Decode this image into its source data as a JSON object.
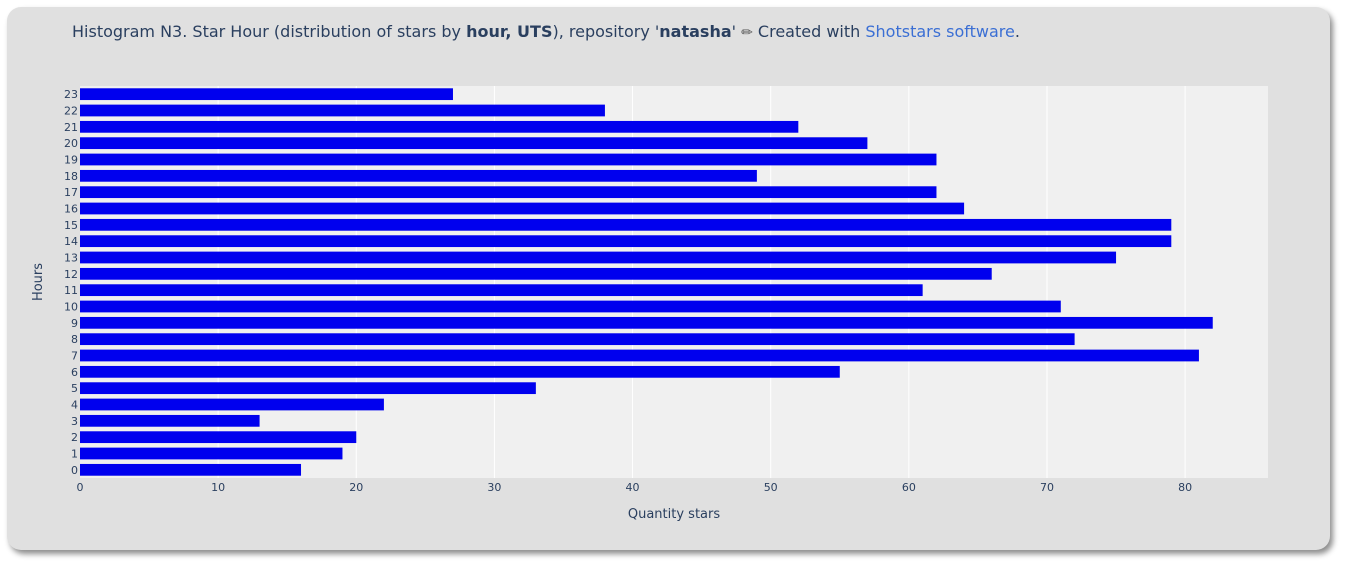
{
  "header": {
    "prefix": "Histogram N3. Star Hour (distribution of stars by ",
    "bold1": "hour, UTS",
    "mid": "), repository '",
    "bold2": "natasha",
    "after": "' ",
    "pen_icon": "pencil-icon",
    "created": " Created with ",
    "link_text": "Shotstars software",
    "end": "."
  },
  "colors": {
    "bar": "#0000ee",
    "plot_bg": "#f0f0f0",
    "card_bg": "#e0e0e0",
    "link": "#3b6fd4",
    "text": "#2a3f5f"
  },
  "chart_data": {
    "type": "bar",
    "orientation": "horizontal",
    "xlabel": "Quantity stars",
    "ylabel": "Hours",
    "xlim": [
      0,
      86
    ],
    "xticks": [
      0,
      10,
      20,
      30,
      40,
      50,
      60,
      70,
      80
    ],
    "categories": [
      "0",
      "1",
      "2",
      "3",
      "4",
      "5",
      "6",
      "7",
      "8",
      "9",
      "10",
      "11",
      "12",
      "13",
      "14",
      "15",
      "16",
      "17",
      "18",
      "19",
      "20",
      "21",
      "22",
      "23"
    ],
    "values": [
      16,
      19,
      20,
      13,
      22,
      33,
      55,
      81,
      72,
      82,
      71,
      61,
      66,
      75,
      79,
      79,
      64,
      62,
      49,
      62,
      57,
      52,
      38,
      27
    ],
    "grid": true
  }
}
